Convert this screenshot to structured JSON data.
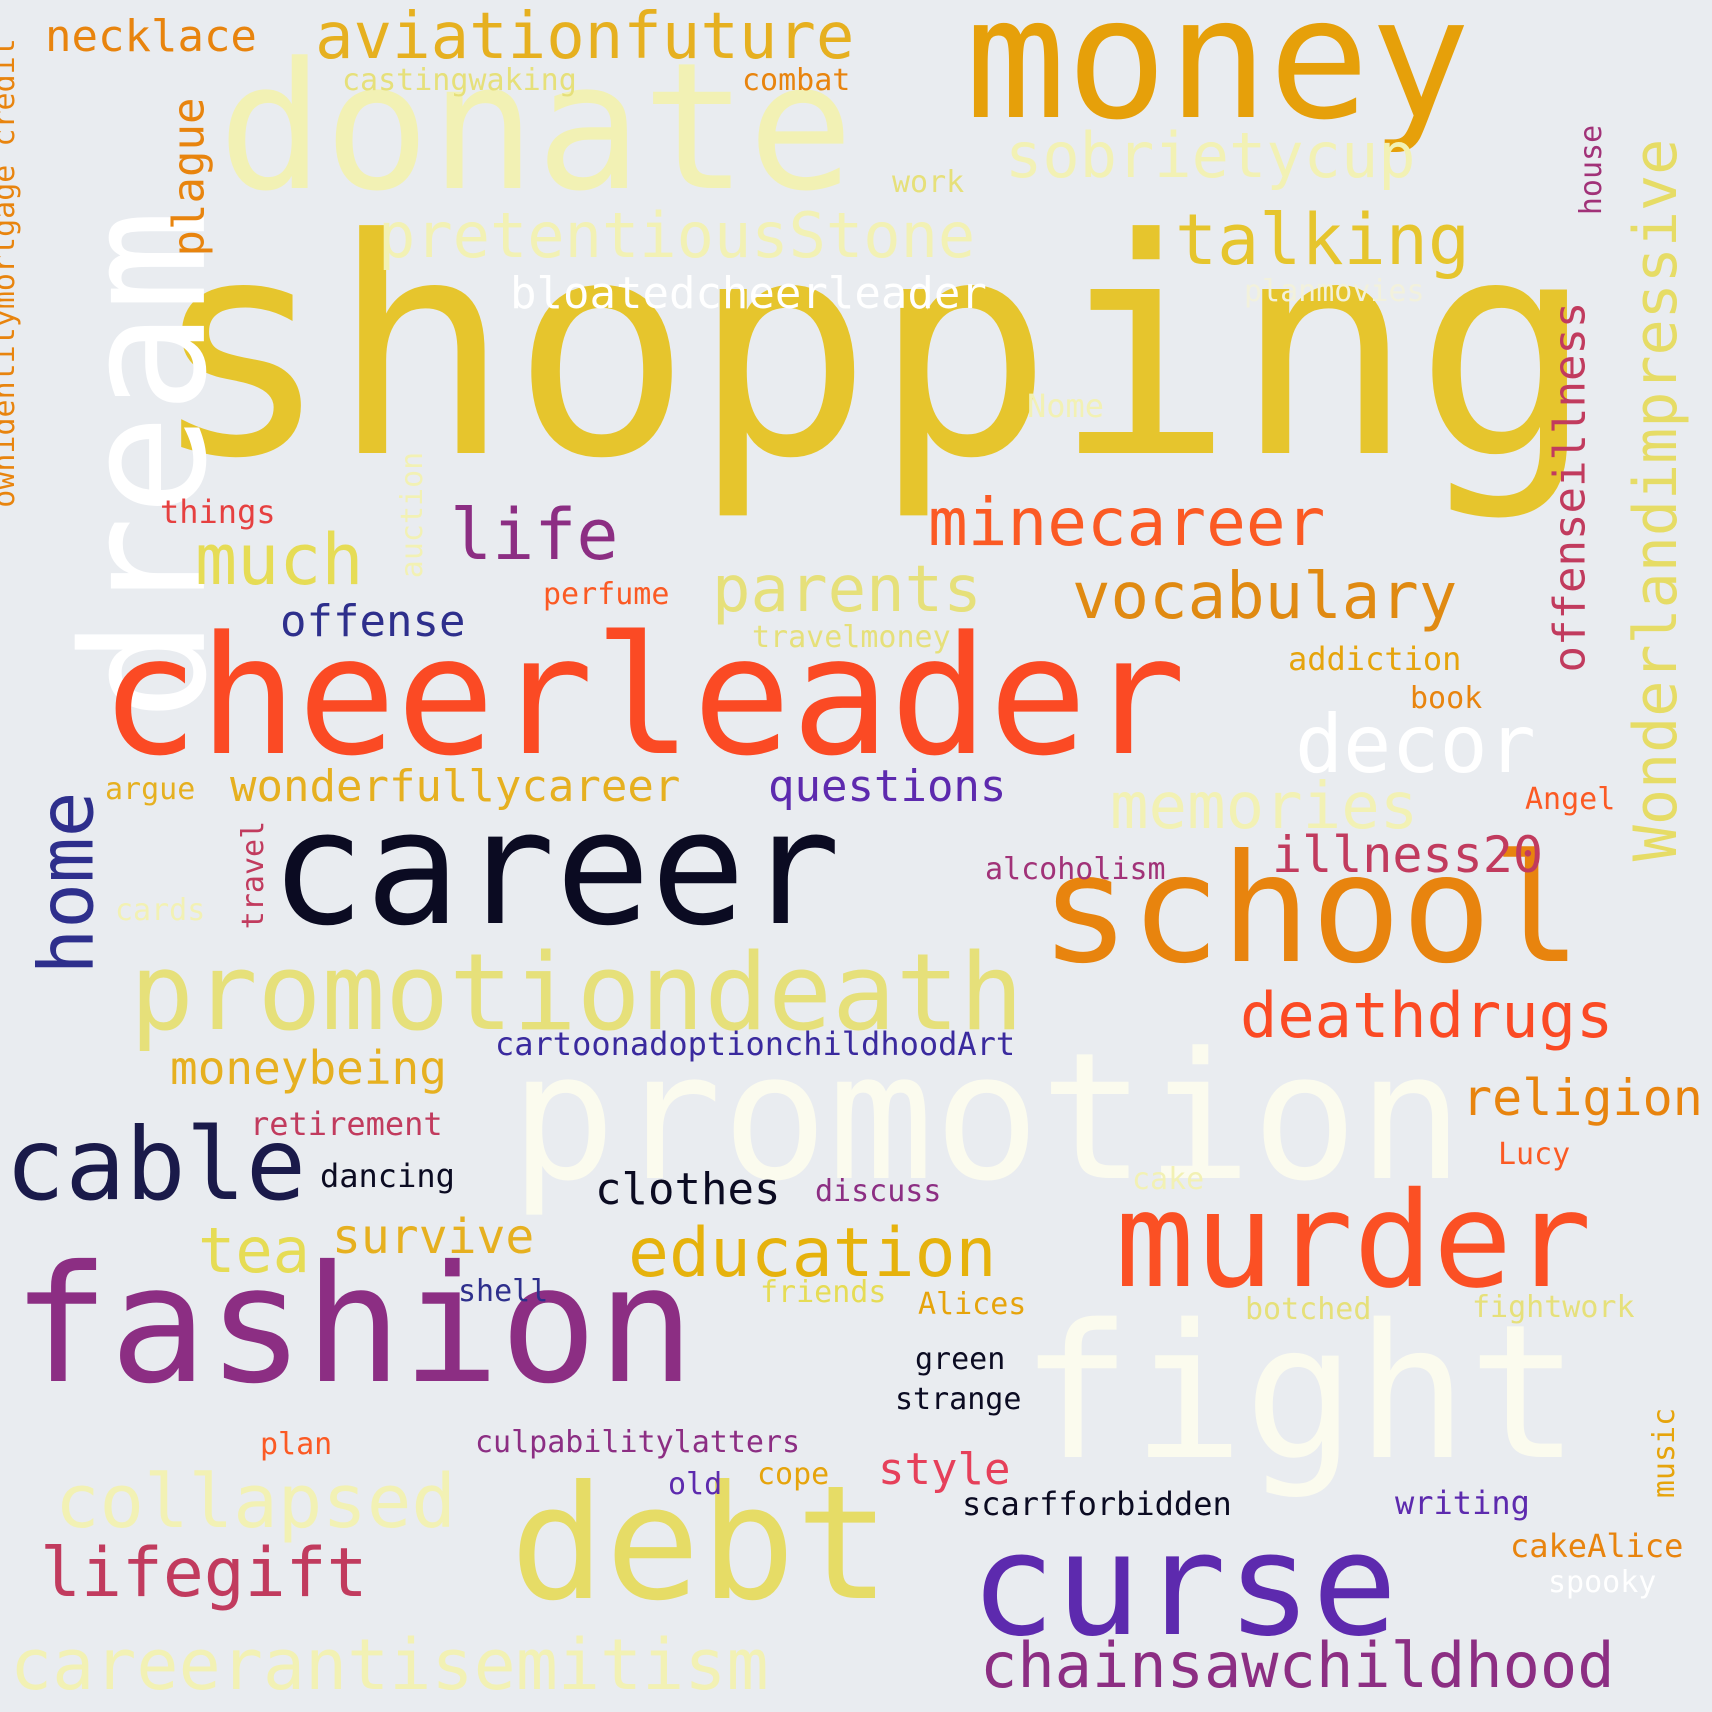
{
  "palette": {
    "background": "#e9ecf0",
    "gold": "#e6c52d",
    "orange": "#e8840e",
    "amber": "#e6a40c",
    "red_orange": "#fb4a24",
    "crimson": "#c13b5e",
    "plum": "#8c2e83",
    "purple": "#5d2aae",
    "indigo": "#2e2f8c",
    "navy": "#1a1a4a",
    "black": "#0b0b22",
    "pale_yellow": "#f2f1b4",
    "khaki": "#e6e07a",
    "ivory": "#fbfbee",
    "white": "#ffffff"
  },
  "words": [
    "shopping",
    "money",
    "donate",
    "dream",
    "cheerleader",
    "career",
    "school",
    "promotion",
    "fashion",
    "fight",
    "murder",
    "curse",
    "debt",
    "promotiondeath",
    "cable",
    "chainsawchildhood",
    "careerantisemitism",
    "collapsed",
    "lifegift",
    "Wonderlandimpressive",
    "aviationfuture",
    "pretentiousStone",
    "talking",
    "sobrietycup",
    "minecareer",
    "vocabulary",
    "decor",
    "parents",
    "life",
    "much",
    "memories",
    "deathdrugs",
    "illness20",
    "home",
    "education",
    "offenseillness",
    "religion",
    "wonderfullycareer",
    "questions",
    "moneybeing",
    "plague",
    "bloatedcheerleader",
    "offense",
    "clothes",
    "tea",
    "survive",
    "necklace",
    "style",
    "retirement",
    "cartoonadoptionchildhoodArt",
    "scarfforbidden",
    "writing",
    "cakeAlice",
    "castingwaking",
    "combat",
    "work",
    "planmovies",
    "house",
    "Nome",
    "things",
    "auction",
    "perfume",
    "travelmoney",
    "addiction",
    "book",
    "argue",
    "Angel",
    "alcoholism",
    "travel",
    "cards",
    "dancing",
    "discuss",
    "cake",
    "Lucy",
    "shell",
    "friends",
    "Alices",
    "botched",
    "fightwork",
    "green",
    "strange",
    "plan",
    "culpabilitylatters",
    "old",
    "cope",
    "music",
    "spooky",
    "ownidentitymortgage credit"
  ]
}
